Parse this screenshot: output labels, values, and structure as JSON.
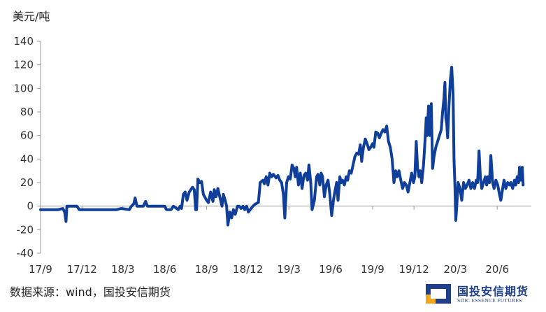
{
  "chart_data": {
    "type": "line",
    "ylabel": "美元/吨",
    "ylim": [
      -40,
      140
    ],
    "yticks": [
      -40,
      -20,
      0,
      20,
      40,
      60,
      80,
      100,
      120,
      140
    ],
    "xlim": [
      "2017-09-01",
      "2020-08-15"
    ],
    "xtick_labels": [
      {
        "date": "2017-09-01",
        "label": "17/9"
      },
      {
        "date": "2017-12-01",
        "label": "17/12"
      },
      {
        "date": "2018-03-01",
        "label": "18/3"
      },
      {
        "date": "2018-06-01",
        "label": "18/6"
      },
      {
        "date": "2018-09-01",
        "label": "18/9"
      },
      {
        "date": "2018-12-01",
        "label": "18/12"
      },
      {
        "date": "2019-03-01",
        "label": "19/3"
      },
      {
        "date": "2019-06-01",
        "label": "19/6"
      },
      {
        "date": "2019-09-01",
        "label": "19/9"
      },
      {
        "date": "2019-12-01",
        "label": "19/12"
      },
      {
        "date": "2020-03-01",
        "label": "20/3"
      },
      {
        "date": "2020-06-01",
        "label": "20/6"
      }
    ],
    "grid": false,
    "line_color": "#0f3f9a",
    "series": [
      {
        "points": [
          [
            "2017-09-01",
            -3
          ],
          [
            "2017-10-10",
            -3
          ],
          [
            "2017-10-20",
            -2
          ],
          [
            "2017-10-24",
            -5
          ],
          [
            "2017-10-27",
            -13
          ],
          [
            "2017-10-29",
            0
          ],
          [
            "2017-11-20",
            0
          ],
          [
            "2017-11-25",
            -3
          ],
          [
            "2018-01-15",
            -3
          ],
          [
            "2018-02-15",
            -3
          ],
          [
            "2018-02-25",
            -2
          ],
          [
            "2018-03-15",
            -3
          ],
          [
            "2018-03-20",
            0
          ],
          [
            "2018-03-25",
            2
          ],
          [
            "2018-03-28",
            7
          ],
          [
            "2018-04-01",
            0
          ],
          [
            "2018-04-15",
            0
          ],
          [
            "2018-04-20",
            4
          ],
          [
            "2018-04-24",
            0
          ],
          [
            "2018-05-20",
            0
          ],
          [
            "2018-06-01",
            0
          ],
          [
            "2018-06-05",
            -3
          ],
          [
            "2018-06-15",
            -3
          ],
          [
            "2018-06-20",
            0
          ],
          [
            "2018-07-01",
            -3
          ],
          [
            "2018-07-05",
            0
          ],
          [
            "2018-07-08",
            -2
          ],
          [
            "2018-07-12",
            10
          ],
          [
            "2018-07-16",
            12
          ],
          [
            "2018-07-20",
            5
          ],
          [
            "2018-07-25",
            12
          ],
          [
            "2018-08-01",
            16
          ],
          [
            "2018-08-05",
            14
          ],
          [
            "2018-08-08",
            -3
          ],
          [
            "2018-08-10",
            -3
          ],
          [
            "2018-08-13",
            23
          ],
          [
            "2018-08-17",
            20
          ],
          [
            "2018-08-21",
            21
          ],
          [
            "2018-08-25",
            10
          ],
          [
            "2018-09-01",
            5
          ],
          [
            "2018-09-05",
            3
          ],
          [
            "2018-09-10",
            12
          ],
          [
            "2018-09-15",
            4
          ],
          [
            "2018-09-18",
            14
          ],
          [
            "2018-09-22",
            8
          ],
          [
            "2018-09-26",
            15
          ],
          [
            "2018-09-30",
            8
          ],
          [
            "2018-10-05",
            0
          ],
          [
            "2018-10-08",
            10
          ],
          [
            "2018-10-12",
            5
          ],
          [
            "2018-10-15",
            0
          ],
          [
            "2018-10-18",
            -16
          ],
          [
            "2018-10-22",
            -5
          ],
          [
            "2018-10-26",
            -10
          ],
          [
            "2018-10-30",
            -3
          ],
          [
            "2018-11-03",
            -7
          ],
          [
            "2018-11-08",
            0
          ],
          [
            "2018-11-12",
            0
          ],
          [
            "2018-11-16",
            -2
          ],
          [
            "2018-11-20",
            0
          ],
          [
            "2018-11-24",
            -3
          ],
          [
            "2018-11-28",
            0
          ],
          [
            "2018-12-02",
            -5
          ],
          [
            "2018-12-06",
            -3
          ],
          [
            "2018-12-12",
            0
          ],
          [
            "2018-12-18",
            2
          ],
          [
            "2018-12-24",
            3
          ],
          [
            "2018-12-28",
            20
          ],
          [
            "2019-01-03",
            22
          ],
          [
            "2019-01-06",
            19
          ],
          [
            "2019-01-10",
            25
          ],
          [
            "2019-01-14",
            18
          ],
          [
            "2019-01-18",
            28
          ],
          [
            "2019-01-22",
            25
          ],
          [
            "2019-01-26",
            27
          ],
          [
            "2019-02-01",
            24
          ],
          [
            "2019-02-05",
            26
          ],
          [
            "2019-02-09",
            22
          ],
          [
            "2019-02-13",
            20
          ],
          [
            "2019-02-17",
            10
          ],
          [
            "2019-02-20",
            -10
          ],
          [
            "2019-02-24",
            20
          ],
          [
            "2019-02-28",
            25
          ],
          [
            "2019-03-04",
            23
          ],
          [
            "2019-03-08",
            35
          ],
          [
            "2019-03-12",
            32
          ],
          [
            "2019-03-15",
            25
          ],
          [
            "2019-03-18",
            33
          ],
          [
            "2019-03-22",
            18
          ],
          [
            "2019-03-26",
            28
          ],
          [
            "2019-03-30",
            15
          ],
          [
            "2019-04-03",
            26
          ],
          [
            "2019-04-07",
            28
          ],
          [
            "2019-04-11",
            22
          ],
          [
            "2019-04-14",
            35
          ],
          [
            "2019-04-18",
            20
          ],
          [
            "2019-04-21",
            -3
          ],
          [
            "2019-04-26",
            5
          ],
          [
            "2019-05-01",
            25
          ],
          [
            "2019-05-04",
            27
          ],
          [
            "2019-05-08",
            18
          ],
          [
            "2019-05-11",
            28
          ],
          [
            "2019-05-14",
            25
          ],
          [
            "2019-05-18",
            8
          ],
          [
            "2019-05-22",
            18
          ],
          [
            "2019-05-26",
            22
          ],
          [
            "2019-05-30",
            10
          ],
          [
            "2019-06-03",
            -8
          ],
          [
            "2019-06-07",
            5
          ],
          [
            "2019-06-10",
            12
          ],
          [
            "2019-06-14",
            20
          ],
          [
            "2019-06-17",
            5
          ],
          [
            "2019-06-21",
            25
          ],
          [
            "2019-06-24",
            20
          ],
          [
            "2019-06-27",
            22
          ],
          [
            "2019-07-01",
            18
          ],
          [
            "2019-07-05",
            25
          ],
          [
            "2019-07-08",
            22
          ],
          [
            "2019-07-12",
            30
          ],
          [
            "2019-07-16",
            28
          ],
          [
            "2019-07-20",
            35
          ],
          [
            "2019-07-24",
            42
          ],
          [
            "2019-07-28",
            45
          ],
          [
            "2019-08-01",
            44
          ],
          [
            "2019-08-05",
            52
          ],
          [
            "2019-08-08",
            38
          ],
          [
            "2019-08-12",
            50
          ],
          [
            "2019-08-16",
            57
          ],
          [
            "2019-08-20",
            53
          ],
          [
            "2019-08-24",
            48
          ],
          [
            "2019-08-28",
            50
          ],
          [
            "2019-09-01",
            53
          ],
          [
            "2019-09-04",
            50
          ],
          [
            "2019-09-08",
            63
          ],
          [
            "2019-09-12",
            62
          ],
          [
            "2019-09-16",
            58
          ],
          [
            "2019-09-20",
            62
          ],
          [
            "2019-09-24",
            65
          ],
          [
            "2019-09-28",
            63
          ],
          [
            "2019-10-02",
            68
          ],
          [
            "2019-10-06",
            55
          ],
          [
            "2019-10-10",
            50
          ],
          [
            "2019-10-14",
            40
          ],
          [
            "2019-10-18",
            20
          ],
          [
            "2019-10-22",
            30
          ],
          [
            "2019-10-25",
            25
          ],
          [
            "2019-10-29",
            30
          ],
          [
            "2019-11-02",
            22
          ],
          [
            "2019-11-06",
            15
          ],
          [
            "2019-11-10",
            20
          ],
          [
            "2019-11-14",
            18
          ],
          [
            "2019-11-18",
            12
          ],
          [
            "2019-11-22",
            20
          ],
          [
            "2019-11-26",
            28
          ],
          [
            "2019-11-30",
            20
          ],
          [
            "2019-12-03",
            25
          ],
          [
            "2019-12-06",
            55
          ],
          [
            "2019-12-09",
            32
          ],
          [
            "2019-12-12",
            25
          ],
          [
            "2019-12-15",
            30
          ],
          [
            "2019-12-18",
            20
          ],
          [
            "2019-12-22",
            35
          ],
          [
            "2019-12-26",
            60
          ],
          [
            "2019-12-28",
            75
          ],
          [
            "2019-12-30",
            60
          ],
          [
            "2020-01-02",
            85
          ],
          [
            "2020-01-05",
            60
          ],
          [
            "2020-01-08",
            87
          ],
          [
            "2020-01-11",
            32
          ],
          [
            "2020-01-14",
            42
          ],
          [
            "2020-01-18",
            50
          ],
          [
            "2020-01-22",
            55
          ],
          [
            "2020-01-26",
            60
          ],
          [
            "2020-01-30",
            65
          ],
          [
            "2020-02-02",
            80
          ],
          [
            "2020-02-05",
            92
          ],
          [
            "2020-02-07",
            105
          ],
          [
            "2020-02-09",
            75
          ],
          [
            "2020-02-11",
            70
          ],
          [
            "2020-02-13",
            58
          ],
          [
            "2020-02-16",
            85
          ],
          [
            "2020-02-19",
            107
          ],
          [
            "2020-02-22",
            118
          ],
          [
            "2020-02-25",
            95
          ],
          [
            "2020-02-27",
            40
          ],
          [
            "2020-02-29",
            18
          ],
          [
            "2020-03-02",
            -12
          ],
          [
            "2020-03-04",
            0
          ],
          [
            "2020-03-07",
            20
          ],
          [
            "2020-03-11",
            15
          ],
          [
            "2020-03-15",
            5
          ],
          [
            "2020-03-19",
            20
          ],
          [
            "2020-03-23",
            15
          ],
          [
            "2020-03-27",
            18
          ],
          [
            "2020-03-31",
            22
          ],
          [
            "2020-04-04",
            15
          ],
          [
            "2020-04-08",
            20
          ],
          [
            "2020-04-12",
            15
          ],
          [
            "2020-04-16",
            22
          ],
          [
            "2020-04-19",
            20
          ],
          [
            "2020-04-22",
            47
          ],
          [
            "2020-04-25",
            25
          ],
          [
            "2020-04-28",
            15
          ],
          [
            "2020-05-02",
            20
          ],
          [
            "2020-05-06",
            25
          ],
          [
            "2020-05-09",
            18
          ],
          [
            "2020-05-12",
            25
          ],
          [
            "2020-05-15",
            20
          ],
          [
            "2020-05-18",
            43
          ],
          [
            "2020-05-22",
            20
          ],
          [
            "2020-05-25",
            15
          ],
          [
            "2020-05-29",
            22
          ],
          [
            "2020-06-02",
            18
          ],
          [
            "2020-06-06",
            10
          ],
          [
            "2020-06-09",
            5
          ],
          [
            "2020-06-13",
            15
          ],
          [
            "2020-06-16",
            22
          ],
          [
            "2020-06-20",
            15
          ],
          [
            "2020-06-24",
            20
          ],
          [
            "2020-06-28",
            18
          ],
          [
            "2020-07-01",
            20
          ],
          [
            "2020-07-05",
            15
          ],
          [
            "2020-07-09",
            22
          ],
          [
            "2020-07-12",
            18
          ],
          [
            "2020-07-15",
            25
          ],
          [
            "2020-07-18",
            20
          ],
          [
            "2020-07-20",
            33
          ],
          [
            "2020-07-23",
            22
          ],
          [
            "2020-07-26",
            33
          ],
          [
            "2020-07-28",
            18
          ]
        ]
      }
    ]
  },
  "footer": {
    "source_text": "数据来源：wind，国投安信期货"
  },
  "logo": {
    "name": "国投安信期货",
    "subtitle": "SDIC ESSENCE FUTURES"
  }
}
